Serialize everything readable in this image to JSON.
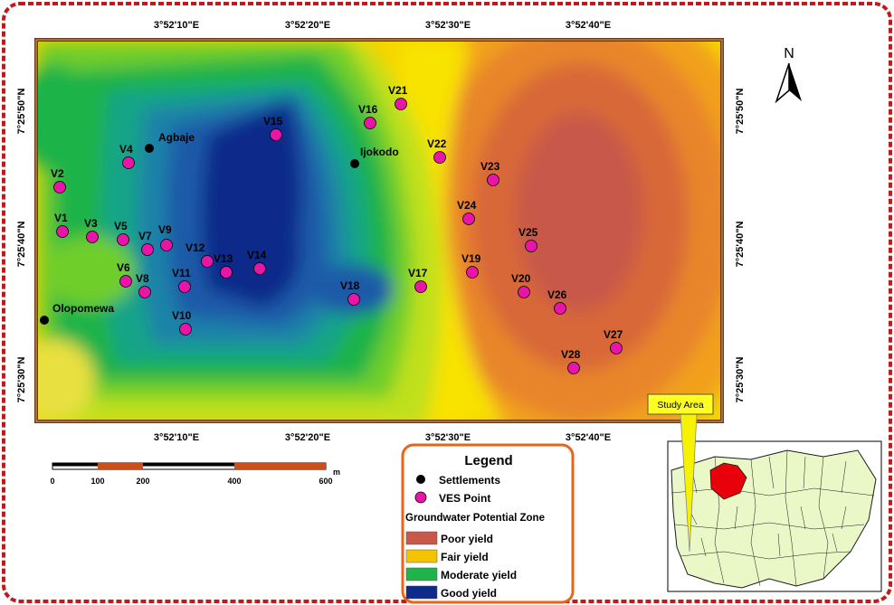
{
  "map": {
    "north_label": "N",
    "top_coords": [
      "3°52'10\"E",
      "3°52'20\"E",
      "3°52'30\"E",
      "3°52'40\"E"
    ],
    "bottom_coords": [
      "3°52'10\"E",
      "3°52'20\"E",
      "3°52'30\"E",
      "3°52'40\"E"
    ],
    "left_coords": [
      "7°25'50\"N",
      "7°25'40\"N",
      "7°25'30\"N"
    ],
    "right_coords": [
      "7°25'50\"N",
      "7°25'40\"N",
      "7°25'30\"N"
    ],
    "settlements": [
      "Agbaje",
      "Ijokodo",
      "Olopomewa"
    ],
    "ves_points": [
      "V1",
      "V2",
      "V3",
      "V4",
      "V5",
      "V6",
      "V7",
      "V8",
      "V9",
      "V10",
      "V11",
      "V12",
      "V13",
      "V14",
      "V15",
      "V16",
      "V17",
      "V18",
      "V19",
      "V20",
      "V21",
      "V22",
      "V23",
      "V24",
      "V25",
      "V26",
      "V27",
      "V28"
    ]
  },
  "scale_bar": {
    "ticks": [
      "0",
      "100",
      "200",
      "400",
      "600"
    ],
    "unit": "m"
  },
  "legend": {
    "title": "Legend",
    "settlements_label": "Settlements",
    "ves_label": "VES Point",
    "zone_title": "Groundwater Potential Zone",
    "zones": [
      {
        "label": "Poor yield",
        "color": "#c8584a"
      },
      {
        "label": "Fair yield",
        "color": "#f5c400"
      },
      {
        "label": "Moderate yield",
        "color": "#1fb34a"
      },
      {
        "label": "Good yield",
        "color": "#0e2a8a"
      }
    ],
    "point_color": "#e815a8",
    "settlement_color": "#000000"
  },
  "inset": {
    "label": "Study Area",
    "highlight_color": "#e8000b",
    "land_color": "#e9f8c6"
  },
  "frame": {
    "border_color": "#c21a1a",
    "map_border_color": "#6b3a1a"
  }
}
